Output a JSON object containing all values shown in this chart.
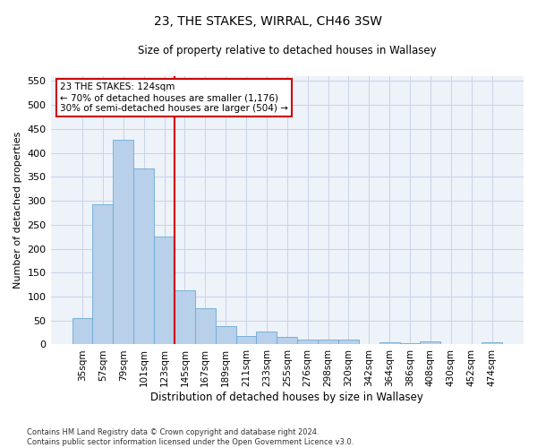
{
  "title": "23, THE STAKES, WIRRAL, CH46 3SW",
  "subtitle": "Size of property relative to detached houses in Wallasey",
  "xlabel": "Distribution of detached houses by size in Wallasey",
  "ylabel": "Number of detached properties",
  "categories": [
    "35sqm",
    "57sqm",
    "79sqm",
    "101sqm",
    "123sqm",
    "145sqm",
    "167sqm",
    "189sqm",
    "211sqm",
    "233sqm",
    "255sqm",
    "276sqm",
    "298sqm",
    "320sqm",
    "342sqm",
    "364sqm",
    "386sqm",
    "408sqm",
    "430sqm",
    "452sqm",
    "474sqm"
  ],
  "values": [
    55,
    292,
    428,
    368,
    225,
    113,
    75,
    38,
    17,
    27,
    15,
    10,
    10,
    10,
    0,
    5,
    3,
    6,
    0,
    0,
    4
  ],
  "bar_color": "#b8d0ea",
  "bar_edge_color": "#6aaad4",
  "vline_color": "#cc0000",
  "vline_index": 4,
  "annotation_text": "23 THE STAKES: 124sqm\n← 70% of detached houses are smaller (1,176)\n30% of semi-detached houses are larger (504) →",
  "annotation_box_color": "#ffffff",
  "annotation_box_edge": "#cc0000",
  "ylim": [
    0,
    560
  ],
  "yticks": [
    0,
    50,
    100,
    150,
    200,
    250,
    300,
    350,
    400,
    450,
    500,
    550
  ],
  "footer": "Contains HM Land Registry data © Crown copyright and database right 2024.\nContains public sector information licensed under the Open Government Licence v3.0.",
  "grid_color": "#c8d4e8",
  "background_color": "#eef2f9"
}
